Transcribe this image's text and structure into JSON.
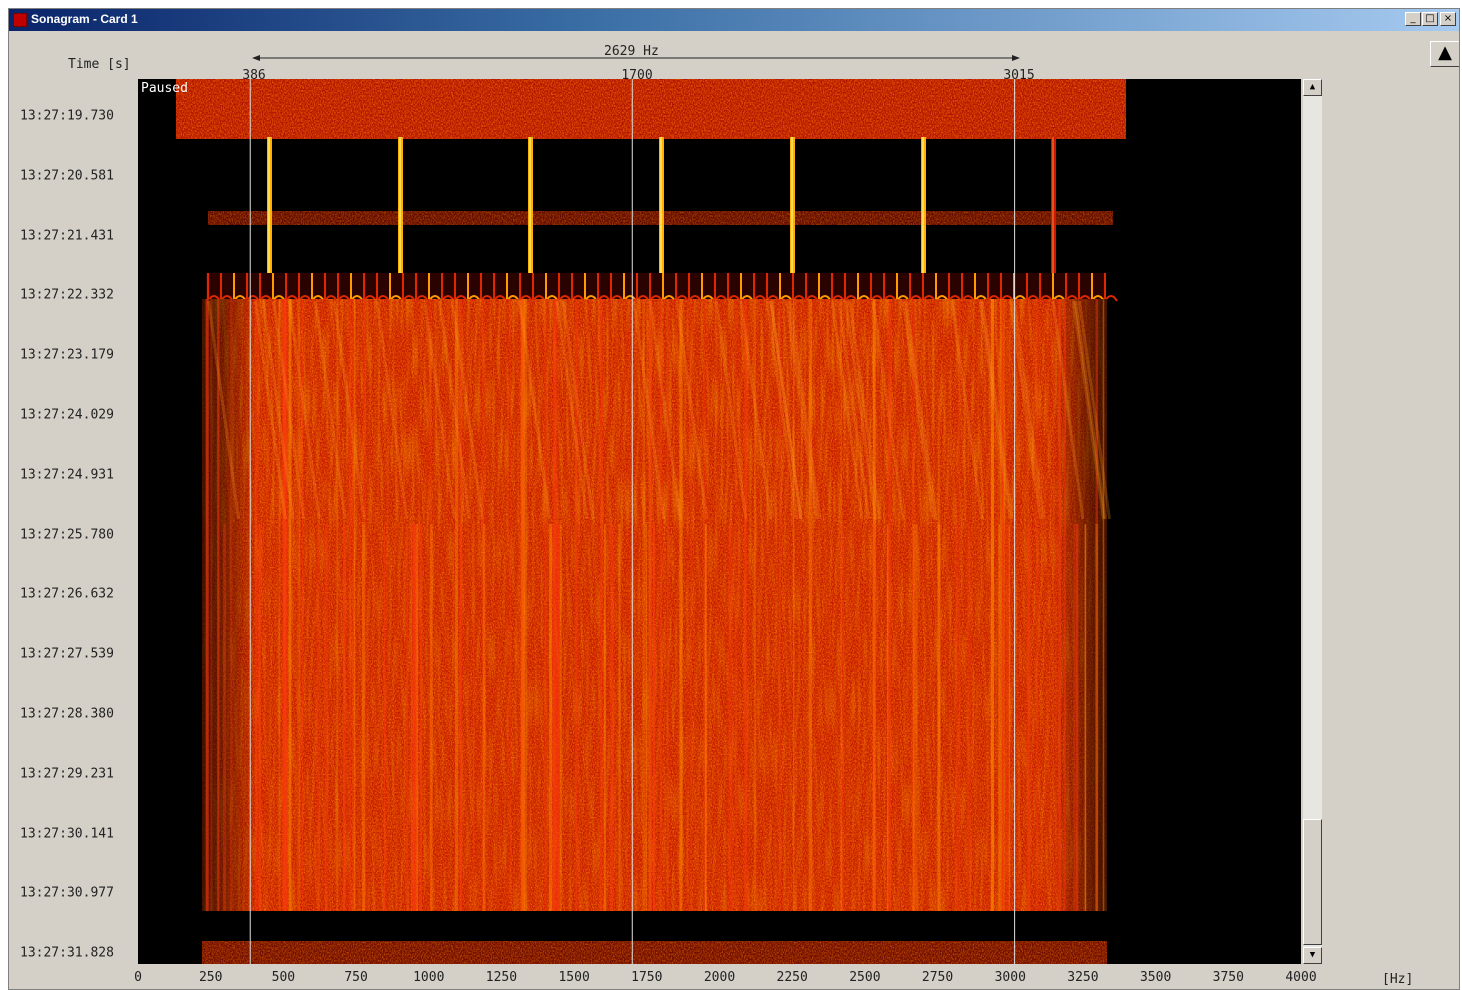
{
  "window": {
    "title": "Sonagram - Card 1",
    "minimize_icon": "_",
    "maximize_icon": "□",
    "close_icon": "×"
  },
  "toolbar": {
    "up_icon": "▲"
  },
  "axis": {
    "time_label": "Time [s]",
    "freq_unit": "[Hz]",
    "freq_ticks": [
      "0",
      "250",
      "500",
      "750",
      "1000",
      "1250",
      "1500",
      "1750",
      "2000",
      "2250",
      "2500",
      "2750",
      "3000",
      "3250",
      "3500",
      "3750",
      "4000"
    ],
    "time_ticks": [
      "13:27:19.730",
      "13:27:20.581",
      "13:27:21.431",
      "13:27:22.332",
      "13:27:23.179",
      "13:27:24.029",
      "13:27:24.931",
      "13:27:25.780",
      "13:27:26.632",
      "13:27:27.539",
      "13:27:28.380",
      "13:27:29.231",
      "13:27:30.141",
      "13:27:30.977",
      "13:27:31.828"
    ]
  },
  "markers": {
    "span_label": "2629 Hz",
    "left": "386",
    "center": "1700",
    "right": "3015"
  },
  "status": {
    "paused": "Paused"
  },
  "scrollbar": {
    "up_icon": "▲",
    "down_icon": "▼"
  },
  "colors": {
    "signal": "#ff3300",
    "background": "#000000"
  }
}
